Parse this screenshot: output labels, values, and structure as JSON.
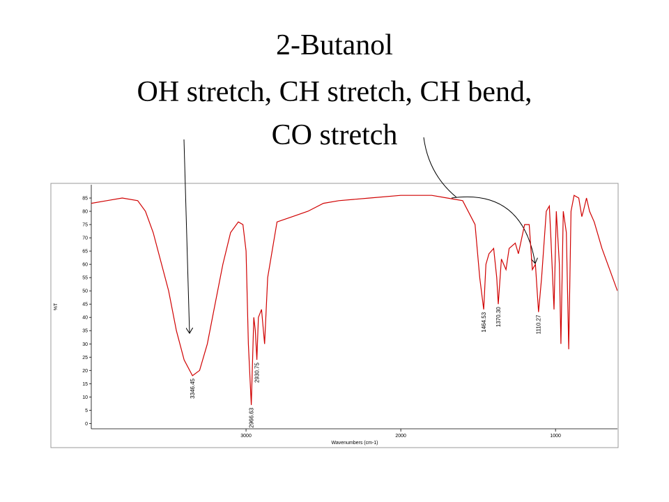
{
  "chart_data": {
    "type": "line",
    "title": "2-Butanol",
    "subtitle": [
      "OH stretch, CH stretch, CH bend,",
      "CO stretch"
    ],
    "xlabel": "Wavenumbers (cm-1)",
    "ylabel": "%T",
    "x": [
      4000,
      3900,
      3800,
      3700,
      3650,
      3600,
      3500,
      3450,
      3400,
      3346,
      3300,
      3250,
      3200,
      3150,
      3100,
      3050,
      3020,
      3000,
      2985,
      2966,
      2950,
      2940,
      2930,
      2920,
      2900,
      2880,
      2860,
      2800,
      2700,
      2600,
      2500,
      2400,
      2200,
      2000,
      1800,
      1700,
      1600,
      1520,
      1490,
      1464,
      1450,
      1430,
      1400,
      1380,
      1370,
      1350,
      1320,
      1300,
      1260,
      1240,
      1200,
      1170,
      1150,
      1130,
      1110,
      1090,
      1060,
      1040,
      1030,
      1010,
      995,
      975,
      965,
      950,
      930,
      915,
      900,
      880,
      850,
      830,
      820,
      800,
      780,
      750,
      700,
      650,
      600
    ],
    "values": [
      83,
      84,
      85,
      84,
      80,
      72,
      50,
      35,
      24,
      18,
      20,
      30,
      45,
      60,
      72,
      76,
      75,
      65,
      30,
      7,
      40,
      35,
      24,
      40,
      43,
      30,
      55,
      76,
      78,
      80,
      83,
      84,
      85,
      86,
      86,
      85,
      84,
      75,
      55,
      43,
      60,
      64,
      66,
      55,
      45,
      62,
      58,
      66,
      68,
      64,
      75,
      75,
      58,
      60,
      42,
      55,
      80,
      82,
      70,
      43,
      80,
      60,
      30,
      80,
      72,
      28,
      80,
      86,
      85,
      78,
      80,
      85,
      80,
      76,
      66,
      58,
      50
    ],
    "color": "#d00000",
    "xlim": [
      4000,
      600
    ],
    "ylim": [
      -2,
      90
    ],
    "xticks": [
      3000,
      2000,
      1000
    ],
    "yticks": [
      0,
      5,
      10,
      15,
      20,
      25,
      30,
      35,
      40,
      45,
      50,
      55,
      60,
      65,
      70,
      75,
      80,
      85
    ],
    "peak_labels": [
      "3346.45",
      "2966.63",
      "2930.75",
      "1464.53",
      "1370.30",
      "1110.27"
    ]
  }
}
